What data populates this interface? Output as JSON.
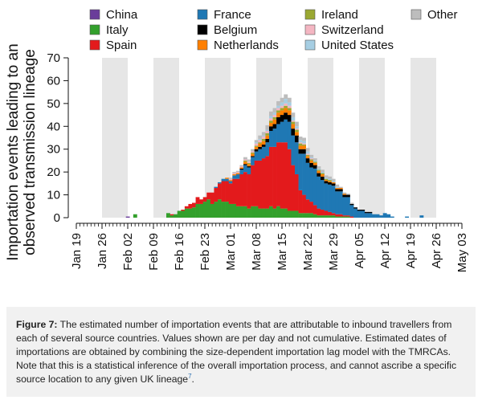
{
  "chart_data": {
    "type": "bar",
    "stacked": true,
    "ylabel": "Importation events leading to an\nobserved transmission lineage",
    "ylabel_lines": [
      "Importation events leading to an",
      "observed transmission lineage"
    ],
    "ylim": [
      0,
      70
    ],
    "yticks": [
      0,
      10,
      20,
      30,
      40,
      50,
      60,
      70
    ],
    "xlim": [
      "2020-01-19",
      "2020-05-03"
    ],
    "xticks": [
      "Jan 19",
      "Jan 26",
      "Feb 02",
      "Feb 09",
      "Feb 16",
      "Feb 23",
      "Mar 01",
      "Mar 08",
      "Mar 15",
      "Mar 22",
      "Mar 29",
      "Apr 05",
      "Apr 12",
      "Apr 19",
      "Apr 26",
      "May 03"
    ],
    "weekend_shading": true,
    "grid": false,
    "legend_position": "top",
    "legend": [
      "China",
      "Italy",
      "Spain",
      "France",
      "Belgium",
      "Netherlands",
      "Ireland",
      "Switzerland",
      "United States",
      "Other"
    ],
    "colors": {
      "China": "#6a3d9a",
      "Italy": "#33a02c",
      "Spain": "#e31a1c",
      "France": "#1f78b4",
      "Belgium": "#000000",
      "Netherlands": "#ff7f00",
      "Ireland": "#9aa832",
      "Switzerland": "#f4b6c2",
      "United States": "#a6cee3",
      "Other": "#bdbdbd"
    },
    "dates": [
      "Feb 02",
      "Feb 04",
      "Feb 13",
      "Feb 14",
      "Feb 15",
      "Feb 16",
      "Feb 17",
      "Feb 18",
      "Feb 19",
      "Feb 20",
      "Feb 21",
      "Feb 22",
      "Feb 23",
      "Feb 24",
      "Feb 25",
      "Feb 26",
      "Feb 27",
      "Feb 28",
      "Feb 29",
      "Mar 01",
      "Mar 02",
      "Mar 03",
      "Mar 04",
      "Mar 05",
      "Mar 06",
      "Mar 07",
      "Mar 08",
      "Mar 09",
      "Mar 10",
      "Mar 11",
      "Mar 12",
      "Mar 13",
      "Mar 14",
      "Mar 15",
      "Mar 16",
      "Mar 17",
      "Mar 18",
      "Mar 19",
      "Mar 20",
      "Mar 21",
      "Mar 22",
      "Mar 23",
      "Mar 24",
      "Mar 25",
      "Mar 26",
      "Mar 27",
      "Mar 28",
      "Mar 29",
      "Mar 30",
      "Mar 31",
      "Apr 01",
      "Apr 02",
      "Apr 03",
      "Apr 04",
      "Apr 05",
      "Apr 06",
      "Apr 07",
      "Apr 08",
      "Apr 09",
      "Apr 10",
      "Apr 11",
      "Apr 12",
      "Apr 13",
      "Apr 14",
      "Apr 18",
      "Apr 22"
    ],
    "series": [
      {
        "name": "China",
        "values": [
          0.5,
          0,
          0,
          0,
          0,
          0,
          0,
          0,
          0,
          0,
          0,
          0,
          0,
          0,
          0,
          0,
          0,
          0,
          0,
          0,
          0,
          0,
          0,
          0,
          0,
          0,
          0,
          0,
          0,
          0,
          0,
          0,
          0,
          0,
          0,
          0,
          0,
          0,
          0,
          0,
          0,
          0,
          0,
          0,
          0,
          0,
          0,
          0,
          0,
          0,
          0,
          0,
          0,
          0,
          0,
          0,
          0,
          0,
          0,
          0,
          0,
          0,
          0,
          0,
          0,
          0
        ]
      },
      {
        "name": "Italy",
        "values": [
          0,
          1.5,
          2,
          1,
          1.5,
          3,
          3,
          4,
          4,
          4.5,
          6,
          6,
          7,
          8,
          6,
          7,
          8,
          7,
          7,
          6,
          6,
          5,
          5,
          5,
          4,
          5,
          5,
          4,
          4,
          4,
          5,
          4,
          5,
          4,
          4,
          3,
          3,
          3,
          2,
          2,
          2,
          2,
          1.5,
          1,
          1,
          1,
          1,
          1,
          0.5,
          0.5,
          0.5,
          0.5,
          0,
          0,
          0,
          0,
          0,
          0,
          0,
          0,
          0,
          0,
          0,
          0,
          0,
          0
        ]
      },
      {
        "name": "Spain",
        "values": [
          0,
          0,
          0,
          0.5,
          0,
          0,
          0.5,
          1,
          2,
          2,
          3,
          2,
          2,
          3,
          5,
          6,
          7,
          9,
          9,
          9,
          11,
          12,
          14,
          15,
          15,
          18,
          20,
          21,
          22,
          23,
          26,
          27,
          28,
          29,
          29,
          27,
          20,
          16,
          10,
          8,
          6,
          5,
          4,
          3,
          2.5,
          2,
          1.5,
          1,
          1,
          1,
          0.5,
          0.5,
          0.5,
          0,
          0,
          0,
          0,
          0,
          0,
          0,
          0,
          0,
          0,
          0,
          0,
          0
        ]
      },
      {
        "name": "France",
        "values": [
          0,
          0,
          0,
          0,
          0,
          0,
          0,
          0,
          0,
          0,
          0,
          0,
          0,
          0,
          0,
          0.5,
          0.5,
          1,
          1,
          1,
          1.5,
          2,
          2,
          3,
          3,
          3.5,
          4,
          5,
          5,
          6,
          7,
          8,
          8,
          9,
          10,
          12,
          13,
          14,
          16,
          18,
          16,
          15,
          16,
          14,
          13,
          12,
          12,
          12,
          10,
          10,
          8,
          8,
          5,
          4,
          3,
          3,
          2,
          2,
          1.5,
          1.5,
          1,
          2,
          1.5,
          0.5,
          0.5,
          1
        ]
      },
      {
        "name": "Belgium",
        "values": [
          0,
          0,
          0,
          0,
          0,
          0,
          0,
          0,
          0,
          0,
          0,
          0,
          0,
          0,
          0,
          0,
          0,
          0,
          0,
          0,
          0,
          0,
          0.5,
          0.5,
          0.5,
          0.5,
          1,
          1,
          1,
          1.5,
          2,
          2,
          3,
          3,
          3,
          3,
          3,
          3,
          2,
          2,
          2,
          2,
          1.5,
          1.5,
          1.5,
          1,
          1,
          1,
          1,
          1,
          1,
          1,
          0.5,
          0.5,
          0.5,
          0.5,
          0.5,
          0.5,
          0,
          0,
          0,
          0,
          0,
          0,
          0,
          0
        ]
      },
      {
        "name": "Netherlands",
        "values": [
          0,
          0,
          0,
          0,
          0,
          0,
          0,
          0,
          0,
          0,
          0,
          0,
          0,
          0,
          0,
          0,
          0,
          0,
          0.5,
          0.5,
          0.5,
          0.5,
          0.5,
          1,
          1,
          1,
          1,
          1.5,
          1.5,
          1.5,
          1.5,
          2,
          2,
          2,
          2,
          2,
          2,
          1.5,
          1.5,
          1.5,
          1,
          1,
          1,
          1,
          1,
          0.5,
          0.5,
          0.5,
          0.5,
          0.5,
          0.5,
          0,
          0,
          0,
          0,
          0,
          0,
          0,
          0,
          0,
          0,
          0,
          0,
          0,
          0,
          0
        ]
      },
      {
        "name": "Ireland",
        "values": [
          0,
          0,
          0,
          0,
          0,
          0,
          0,
          0,
          0,
          0,
          0,
          0,
          0,
          0,
          0,
          0,
          0,
          0,
          0,
          0,
          0,
          0,
          0,
          0.5,
          0.5,
          0.5,
          0.5,
          0.5,
          1,
          1,
          1,
          1,
          1,
          1,
          1,
          1,
          1,
          1,
          1,
          0.5,
          0.5,
          0.5,
          0.5,
          0.5,
          0.5,
          0.5,
          0.5,
          0,
          0,
          0,
          0,
          0,
          0,
          0,
          0,
          0,
          0,
          0,
          0,
          0,
          0,
          0,
          0,
          0,
          0,
          0
        ]
      },
      {
        "name": "Switzerland",
        "values": [
          0,
          0,
          0,
          0,
          0,
          0,
          0,
          0,
          0,
          0,
          0,
          0,
          0,
          0,
          0,
          0,
          0,
          0,
          0,
          0.5,
          0.5,
          0.5,
          0.5,
          0.5,
          0.5,
          0.5,
          1,
          1,
          1,
          1,
          1,
          1,
          1,
          1,
          1,
          1,
          0.5,
          0.5,
          0.5,
          0.5,
          0.5,
          0.5,
          0,
          0,
          0,
          0,
          0,
          0,
          0,
          0,
          0,
          0,
          0,
          0,
          0,
          0,
          0,
          0,
          0,
          0,
          0,
          0,
          0,
          0,
          0,
          0
        ]
      },
      {
        "name": "United States",
        "values": [
          0,
          0,
          0,
          0,
          0,
          0,
          0,
          0,
          0,
          0,
          0,
          0,
          0,
          0,
          0,
          0,
          0,
          0,
          0,
          0,
          0,
          0,
          0,
          0,
          0,
          0,
          0.5,
          0.5,
          0.5,
          0.5,
          1,
          1,
          1,
          1.5,
          2,
          1.5,
          1.5,
          1,
          1,
          1,
          1,
          0.5,
          0.5,
          0.5,
          0.5,
          0.5,
          0.5,
          0.5,
          0.5,
          0,
          0,
          0,
          0,
          0,
          0,
          0,
          0,
          0,
          0,
          0,
          0,
          0,
          0,
          0,
          0,
          0
        ]
      },
      {
        "name": "Other",
        "values": [
          0,
          0,
          0,
          0,
          0,
          0,
          0,
          0,
          0,
          0,
          0,
          0,
          0,
          0,
          0,
          0,
          0,
          0,
          0,
          0.5,
          0.5,
          0.5,
          0.5,
          1,
          1,
          1,
          1,
          1.5,
          1.5,
          2,
          2,
          2,
          2,
          2,
          2,
          2,
          2,
          2,
          1.5,
          1.5,
          1.5,
          1,
          1,
          1,
          1,
          1,
          1,
          1,
          1,
          0.5,
          0.5,
          0.5,
          0.5,
          0,
          0,
          0,
          0,
          0,
          0,
          0,
          0,
          0,
          0,
          0,
          0,
          0
        ]
      }
    ]
  },
  "caption": {
    "label": "Figure 7:",
    "text": " The estimated number of importation events that are attributable to inbound travellers from each of several source countries. Values shown are per day and not cumulative. Estimated dates of importations are obtained by combining the size-dependent importation lag model with the TMRCAs. Note that this is a statistical inference of the overall importation process, and cannot ascribe a specific source location to any given UK lineage",
    "footnote_ref": "7",
    "end": "."
  }
}
